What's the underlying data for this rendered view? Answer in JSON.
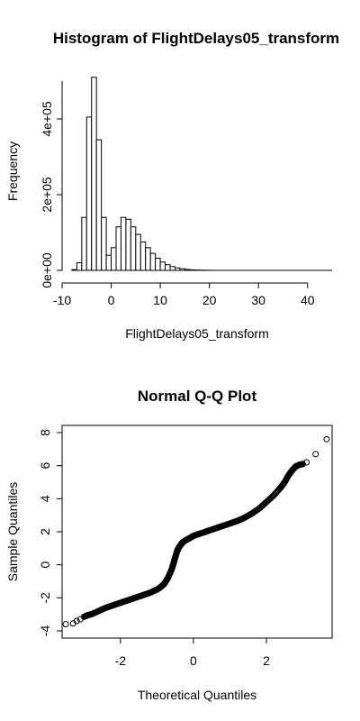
{
  "chart_data": [
    {
      "type": "bar",
      "title": "Histogram of FlightDelays05_transform",
      "xlabel": "FlightDelays05_transform",
      "ylabel": "Frequency",
      "xlim": [
        -10,
        45
      ],
      "ylim": [
        0,
        500000
      ],
      "x_ticks": [
        {
          "value": -10,
          "label": "-10"
        },
        {
          "value": 0,
          "label": "0"
        },
        {
          "value": 10,
          "label": "10"
        },
        {
          "value": 20,
          "label": "20"
        },
        {
          "value": 30,
          "label": "30"
        },
        {
          "value": 40,
          "label": "40"
        }
      ],
      "y_ticks": [
        {
          "value": 0,
          "label": "0e+00"
        },
        {
          "value": 200000,
          "label": "2e+05"
        },
        {
          "value": 400000,
          "label": "4e+05"
        }
      ],
      "bin_width": 1,
      "bins_start": [
        -8,
        -7,
        -6,
        -5,
        -4,
        -3,
        -2,
        -1,
        0,
        1,
        2,
        3,
        4,
        5,
        6,
        7,
        8,
        9,
        10,
        11,
        12,
        13,
        14,
        15,
        16,
        17,
        18,
        19,
        20
      ],
      "values": [
        2000,
        20000,
        140000,
        405000,
        510000,
        345000,
        140000,
        40000,
        60000,
        115000,
        140000,
        135000,
        115000,
        95000,
        75000,
        60000,
        45000,
        32000,
        22000,
        15000,
        10000,
        6500,
        4200,
        2500,
        1500,
        900,
        500,
        250,
        120
      ]
    },
    {
      "type": "scatter",
      "title": "Normal Q-Q Plot",
      "xlabel": "Theoretical Quantiles",
      "ylabel": "Sample Quantiles",
      "xlim": [
        -3.6,
        3.8
      ],
      "ylim": [
        -4,
        8
      ],
      "x_ticks": [
        {
          "value": -2,
          "label": "-2"
        },
        {
          "value": 0,
          "label": "0"
        },
        {
          "value": 2,
          "label": "2"
        }
      ],
      "y_ticks": [
        {
          "value": -4,
          "label": "-4"
        },
        {
          "value": -2,
          "label": "-2"
        },
        {
          "value": 0,
          "label": "0"
        },
        {
          "value": 2,
          "label": "2"
        },
        {
          "value": 4,
          "label": "4"
        },
        {
          "value": 6,
          "label": "6"
        },
        {
          "value": 8,
          "label": "8"
        }
      ],
      "x": [
        -3.5,
        -3.3,
        -3.2,
        -3.1,
        -3.0,
        -2.9,
        -2.8,
        -2.6,
        -2.4,
        -2.2,
        -2.0,
        -1.8,
        -1.6,
        -1.4,
        -1.2,
        -1.0,
        -0.9,
        -0.8,
        -0.7,
        -0.6,
        -0.55,
        -0.5,
        -0.45,
        -0.4,
        -0.35,
        -0.3,
        -0.2,
        -0.1,
        0.0,
        0.2,
        0.4,
        0.6,
        0.8,
        1.0,
        1.2,
        1.4,
        1.6,
        1.8,
        2.0,
        2.2,
        2.4,
        2.5,
        2.6,
        2.7,
        2.8,
        2.9,
        3.0,
        3.1,
        3.35,
        3.65
      ],
      "y": [
        -3.6,
        -3.55,
        -3.4,
        -3.3,
        -3.15,
        -3.05,
        -3.0,
        -2.8,
        -2.6,
        -2.45,
        -2.3,
        -2.15,
        -2.0,
        -1.85,
        -1.7,
        -1.5,
        -1.35,
        -1.15,
        -0.8,
        -0.3,
        0.05,
        0.45,
        0.8,
        1.05,
        1.2,
        1.35,
        1.5,
        1.62,
        1.75,
        1.9,
        2.05,
        2.2,
        2.35,
        2.5,
        2.65,
        2.85,
        3.1,
        3.4,
        3.8,
        4.2,
        4.7,
        5.0,
        5.4,
        5.7,
        5.95,
        6.05,
        6.1,
        6.2,
        6.7,
        7.6
      ]
    }
  ]
}
